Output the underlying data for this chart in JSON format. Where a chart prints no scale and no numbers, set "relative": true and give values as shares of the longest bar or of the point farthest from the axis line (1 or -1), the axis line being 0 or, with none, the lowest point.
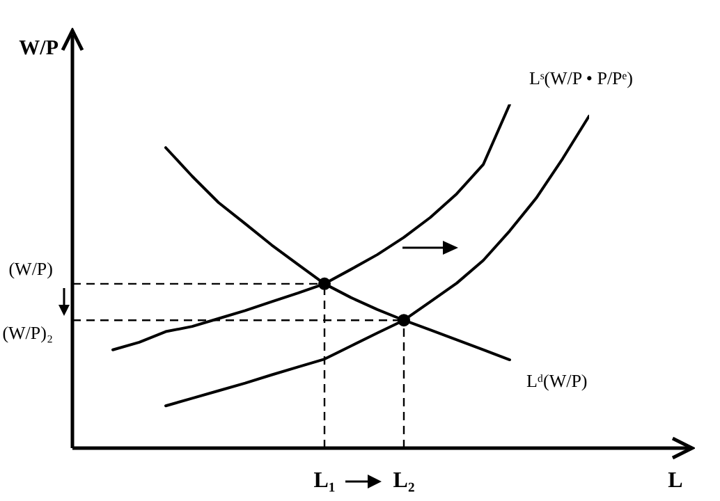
{
  "chart_data": {
    "type": "line",
    "xlabel": "L",
    "ylabel": "W/P",
    "relative": true,
    "categories": [
      null,
      null,
      null,
      null,
      null,
      null,
      null,
      null,
      null,
      "L₁",
      null,
      null,
      "L₂",
      null,
      null,
      null,
      null,
      null,
      null,
      null
    ],
    "series": [
      {
        "name": "Lᵈ(W/P)",
        "color": "#000000",
        "values": [
          null,
          null,
          null,
          0.874,
          0.791,
          0.714,
          0.653,
          0.591,
          0.534,
          0.478,
          0.438,
          0.403,
          0.372,
          0.344,
          0.315,
          0.286,
          0.257,
          null,
          null,
          null
        ]
      },
      {
        "name": "Lˢ(W/P • P/Pᵉ)",
        "color": "#000000",
        "values": [
          null,
          0.286,
          0.308,
          0.339,
          0.354,
          0.377,
          0.4,
          0.426,
          0.451,
          0.478,
          0.52,
          0.563,
          0.613,
          0.671,
          0.74,
          0.825,
          1.0,
          null,
          null,
          null
        ]
      },
      {
        "color": "#000000",
        "values": [
          null,
          null,
          null,
          0.123,
          0.145,
          0.167,
          0.189,
          0.213,
          0.236,
          0.259,
          0.297,
          0.335,
          0.372,
          0.426,
          0.48,
          0.546,
          0.632,
          0.727,
          0.842,
          0.966
        ]
      },
      {
        "type": "scatter",
        "color": "#000000",
        "marker": "circle",
        "x": [
          "L₁",
          "L₂"
        ],
        "values": [
          0.478,
          0.372
        ]
      }
    ],
    "ref_lines": [
      {
        "axis": "y",
        "value": 0.478,
        "label": "(W/P)",
        "line_style": "dashed"
      },
      {
        "axis": "y",
        "value": 0.372,
        "label": "(W/P)₂",
        "line_style": "dashed"
      }
    ]
  }
}
